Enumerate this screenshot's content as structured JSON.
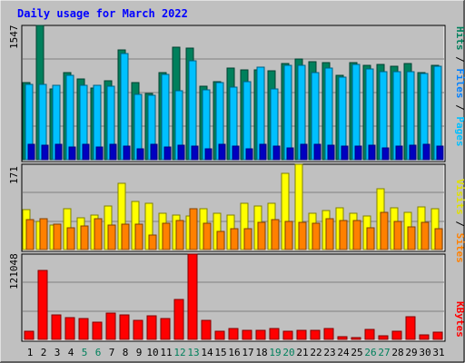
{
  "colors": {
    "background": "#c0c0c0",
    "title": "#0000ff",
    "hits": "#00805c",
    "files": "#00c0ff",
    "pages": "#00e0ff",
    "visits": "#ffff00",
    "sites": "#ff8000",
    "kbytes": "#ff0000",
    "weekend_label": "#00805c",
    "gridline": "#808080",
    "axis_text": "#000000"
  },
  "chart_data": [
    {
      "type": "bar",
      "title": "Daily usage for March 2022",
      "ymax_label": "1547",
      "ymax": 1547,
      "categories": [
        "1",
        "2",
        "3",
        "4",
        "5",
        "6",
        "7",
        "8",
        "9",
        "10",
        "11",
        "12",
        "13",
        "14",
        "15",
        "16",
        "17",
        "18",
        "19",
        "20",
        "21",
        "22",
        "23",
        "24",
        "25",
        "26",
        "27",
        "28",
        "29",
        "30",
        "31"
      ],
      "weekend_days": [
        "5",
        "6",
        "12",
        "13",
        "19",
        "20",
        "26",
        "27"
      ],
      "series": [
        {
          "name": "Hits",
          "values": [
            886,
            1547,
            817,
            1008,
            929,
            822,
            908,
            1262,
            886,
            763,
            1003,
            1300,
            1283,
            843,
            897,
            1059,
            1040,
            1033,
            1021,
            1113,
            1161,
            1124,
            1114,
            974,
            1114,
            1089,
            1095,
            1079,
            1104,
            1004,
            1083
          ]
        },
        {
          "name": "Files",
          "values": [
            868,
            869,
            854,
            971,
            858,
            862,
            851,
            1221,
            748,
            740,
            982,
            792,
            1135,
            804,
            889,
            832,
            898,
            1070,
            819,
            1088,
            1092,
            1007,
            1055,
            949,
            1101,
            1047,
            1009,
            1016,
            1019,
            995,
            1080
          ]
        },
        {
          "name": "Pages",
          "values": [
            180,
            165,
            176,
            150,
            176,
            144,
            180,
            157,
            123,
            176,
            148,
            166,
            153,
            130,
            180,
            159,
            124,
            176,
            154,
            140,
            175,
            178,
            166,
            153,
            159,
            164,
            141,
            152,
            166,
            176,
            152
          ]
        }
      ],
      "legend": [
        "Pages",
        "Files",
        "Hits"
      ]
    },
    {
      "type": "bar",
      "ymax_label": "171",
      "ymax": 171,
      "categories": [
        "1",
        "2",
        "3",
        "4",
        "5",
        "6",
        "7",
        "8",
        "9",
        "10",
        "11",
        "12",
        "13",
        "14",
        "15",
        "16",
        "17",
        "18",
        "19",
        "20",
        "21",
        "22",
        "23",
        "24",
        "25",
        "26",
        "27",
        "28",
        "29",
        "30",
        "31"
      ],
      "series": [
        {
          "name": "Visits",
          "values": [
            80,
            57,
            49,
            81,
            64,
            69,
            88,
            133,
            97,
            92,
            73,
            69,
            67,
            81,
            72,
            70,
            93,
            87,
            92,
            153,
            171,
            73,
            79,
            83,
            72,
            67,
            122,
            84,
            75,
            85,
            82
          ]
        },
        {
          "name": "Sites",
          "values": [
            60,
            61,
            51,
            43,
            48,
            62,
            50,
            51,
            51,
            29,
            53,
            59,
            81,
            53,
            36,
            42,
            42,
            55,
            60,
            56,
            55,
            53,
            62,
            58,
            59,
            44,
            75,
            56,
            45,
            54,
            41
          ]
        }
      ],
      "legend": [
        "Sites",
        "Visits"
      ]
    },
    {
      "type": "bar",
      "ymax_label": "121048",
      "ymax": 121048,
      "categories": [
        "1",
        "2",
        "3",
        "4",
        "5",
        "6",
        "7",
        "8",
        "9",
        "10",
        "11",
        "12",
        "13",
        "14",
        "15",
        "16",
        "17",
        "18",
        "19",
        "20",
        "21",
        "22",
        "23",
        "24",
        "25",
        "26",
        "27",
        "28",
        "29",
        "30",
        "31"
      ],
      "series": [
        {
          "name": "KBytes",
          "values": [
            11000,
            98000,
            35000,
            31000,
            29000,
            24000,
            37000,
            35000,
            27000,
            34000,
            29000,
            57000,
            121048,
            27000,
            11000,
            15000,
            13000,
            13000,
            15000,
            11000,
            13000,
            13000,
            15000,
            4000,
            3000,
            14000,
            5000,
            11000,
            32000,
            6000,
            10000
          ]
        }
      ],
      "legend": [
        "KBytes"
      ]
    }
  ]
}
